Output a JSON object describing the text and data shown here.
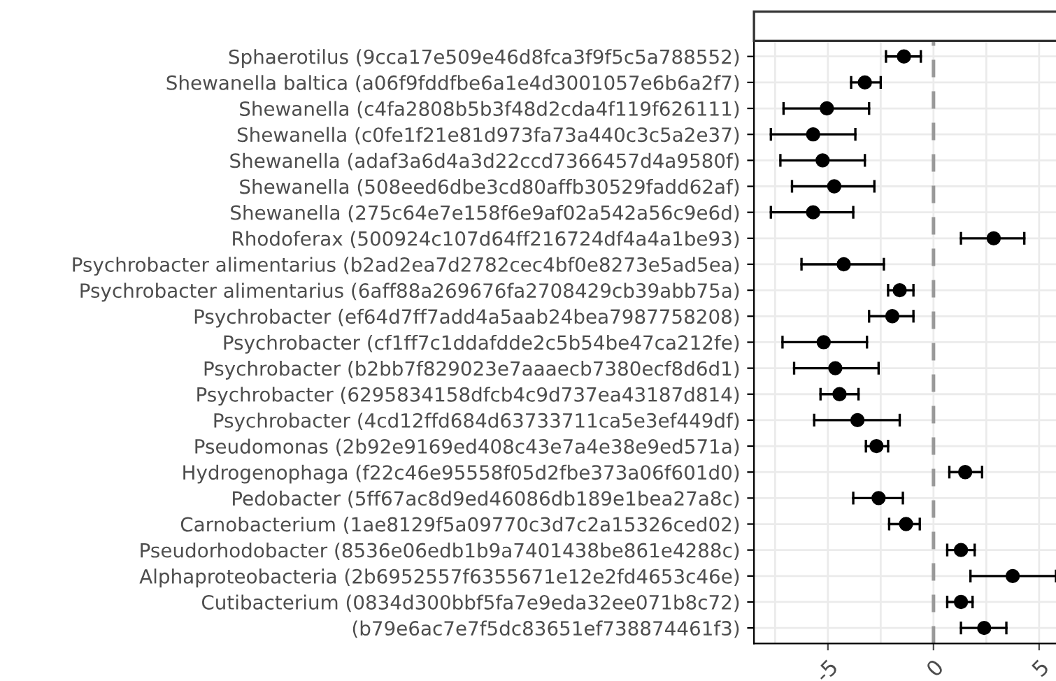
{
  "chart_data": {
    "type": "scatter",
    "orientation": "horizontal",
    "categories": [
      "Sphaerotilus (9cca17e509e46d8fca3f9f5c5a788552)",
      "Shewanella baltica (a06f9fddfbe6a1e4d3001057e6b6a2f7)",
      "Shewanella (c4fa2808b5b3f48d2cda4f119f626111)",
      "Shewanella (c0fe1f21e81d973fa73a440c3c5a2e37)",
      "Shewanella (adaf3a6d4a3d22ccd7366457d4a9580f)",
      "Shewanella (508eed6dbe3cd80affb30529fadd62af)",
      "Shewanella (275c64e7e158f6e9af02a542a56c9e6d)",
      "Rhodoferax (500924c107d64ff216724df4a4a1be93)",
      "Psychrobacter alimentarius (b2ad2ea7d2782cec4bf0e8273e5ad5ea)",
      "Psychrobacter alimentarius (6aff88a269676fa2708429cb39abb75a)",
      "Psychrobacter (ef64d7ff7add4a5aab24bea7987758208)",
      "Psychrobacter (cf1ff7c1ddafdde2c5b54be47ca212fe)",
      "Psychrobacter (b2bb7f829023e7aaaecb7380ecf8d6d1)",
      "Psychrobacter (6295834158dfcb4c9d737ea43187d814)",
      "Psychrobacter (4cd12ffd684d63733711ca5e3ef449df)",
      "Pseudomonas (2b92e9169ed408c43e7a4e38e9ed571a)",
      "Hydrogenophaga (f22c46e95558f05d2fbe373a06f601d0)",
      "Pedobacter (5ff67ac8d9ed46086db189e1bea27a8c)",
      "Carnobacterium (1ae8129f5a09770c3d7c2a15326ced02)",
      "Pseudorhodobacter (8536e06edb1b9a7401438be861e4288c)",
      "Alphaproteobacteria (2b6952557f6355671e12e2fd4653c46e)",
      "Cutibacterium (0834d300bbf5fa7e9eda32ee071b8c72)",
      "(b79e6ac7e7f5dc83651ef738874461f3)"
    ],
    "values": [
      -1.4,
      -3.25,
      -5.05,
      -5.7,
      -5.25,
      -4.7,
      -5.7,
      2.85,
      -4.25,
      -1.6,
      -1.95,
      -5.2,
      -4.65,
      -4.45,
      -3.6,
      -2.7,
      1.5,
      -2.6,
      -1.3,
      1.3,
      3.75,
      1.3,
      2.4
    ],
    "errors": [
      [
        -2.25,
        -0.6
      ],
      [
        -3.9,
        -2.5
      ],
      [
        -7.1,
        -3.05
      ],
      [
        -7.7,
        -3.7
      ],
      [
        -7.25,
        -3.25
      ],
      [
        -6.7,
        -2.8
      ],
      [
        -7.7,
        -3.8
      ],
      [
        1.3,
        4.3
      ],
      [
        -6.25,
        -2.35
      ],
      [
        -2.15,
        -0.95
      ],
      [
        -3.05,
        -0.95
      ],
      [
        -7.15,
        -3.15
      ],
      [
        -6.6,
        -2.6
      ],
      [
        -5.35,
        -3.55
      ],
      [
        -5.65,
        -1.6
      ],
      [
        -3.2,
        -2.15
      ],
      [
        0.75,
        2.3
      ],
      [
        -3.8,
        -1.45
      ],
      [
        -2.1,
        -0.65
      ],
      [
        0.65,
        1.95
      ],
      [
        1.75,
        5.8
      ],
      [
        0.65,
        1.85
      ],
      [
        1.3,
        3.45
      ]
    ],
    "color": "#000000",
    "marker": "circle",
    "xlim": [
      -8.5,
      5.8
    ],
    "xticks": [
      {
        "value": -7.5,
        "label": null
      },
      {
        "value": -5,
        "label": "-5"
      },
      {
        "value": -2.5,
        "label": null
      },
      {
        "value": 0,
        "label": "0"
      },
      {
        "value": 2.5,
        "label": null
      },
      {
        "value": 5,
        "label": "5"
      }
    ],
    "grid": true,
    "ref_lines": [
      {
        "axis": "x",
        "value": 0,
        "color": "#999999",
        "line_style": "dashed"
      }
    ]
  }
}
